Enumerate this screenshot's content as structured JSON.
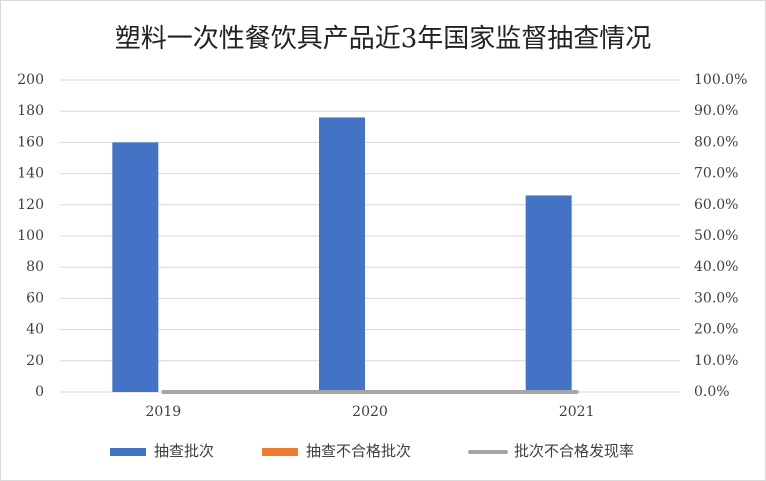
{
  "chart_data": {
    "type": "bar",
    "title": "塑料一次性餐饮具产品近3年国家监督抽查情况",
    "categories": [
      "2019",
      "2020",
      "2021"
    ],
    "series": [
      {
        "name": "抽查批次",
        "color": "#4472c4",
        "values": [
          160,
          176,
          126
        ]
      },
      {
        "name": "抽查不合格批次",
        "color": "#ed7d31",
        "values": [
          0,
          0,
          0
        ]
      },
      {
        "name": "批次不合格发现率",
        "color": "#a5a5a5",
        "values": [
          0,
          0,
          0
        ],
        "axis": "y2",
        "type": "line"
      }
    ],
    "ylim": [
      0,
      200
    ],
    "yticks": [
      0,
      20,
      40,
      60,
      80,
      100,
      120,
      140,
      160,
      180,
      200
    ],
    "y2lim": [
      0,
      100
    ],
    "y2ticks": [
      {
        "value": 0,
        "label": "0.0%"
      },
      {
        "value": 10,
        "label": "10.0%"
      },
      {
        "value": 20,
        "label": "20.0%"
      },
      {
        "value": 30,
        "label": "30.0%"
      },
      {
        "value": 40,
        "label": "40.0%"
      },
      {
        "value": 50,
        "label": "50.0%"
      },
      {
        "value": 60,
        "label": "60.0%"
      },
      {
        "value": 70,
        "label": "70.0%"
      },
      {
        "value": 80,
        "label": "80.0%"
      },
      {
        "value": 90,
        "label": "90.0%"
      },
      {
        "value": 100,
        "label": "100.0%"
      }
    ],
    "grid": true,
    "legend": "bottom"
  }
}
